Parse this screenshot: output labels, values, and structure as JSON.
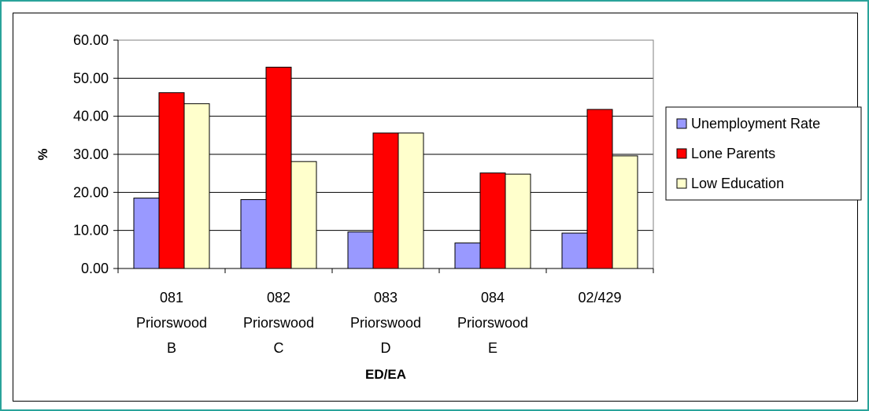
{
  "chart_data": {
    "type": "bar",
    "categories": [
      [
        "081",
        "Priorswood",
        "B"
      ],
      [
        "082",
        "Priorswood",
        "C"
      ],
      [
        "083",
        "Priorswood",
        "D"
      ],
      [
        "084",
        "Priorswood",
        "E"
      ],
      [
        "02/429"
      ]
    ],
    "series": [
      {
        "name": "Unemployment Rate",
        "color": "#9999ff",
        "values": [
          18.5,
          18.1,
          9.6,
          6.7,
          9.3
        ]
      },
      {
        "name": "Lone Parents",
        "color": "#ff0000",
        "values": [
          46.2,
          52.9,
          35.6,
          25.1,
          41.8
        ]
      },
      {
        "name": "Low Education",
        "color": "#ffffcc",
        "values": [
          43.3,
          28.1,
          35.6,
          24.8,
          29.6
        ]
      }
    ],
    "xlabel": "ED/EA",
    "ylabel": "%",
    "ylim": [
      0,
      60
    ],
    "yticks": [
      "0.00",
      "10.00",
      "20.00",
      "30.00",
      "40.00",
      "50.00",
      "60.00"
    ],
    "grid": true,
    "legend_position": "right",
    "colors": {
      "frame": "#2aa39a",
      "plot_border": "#808080",
      "gridline": "#000000",
      "bar_outline": "#000000"
    }
  }
}
